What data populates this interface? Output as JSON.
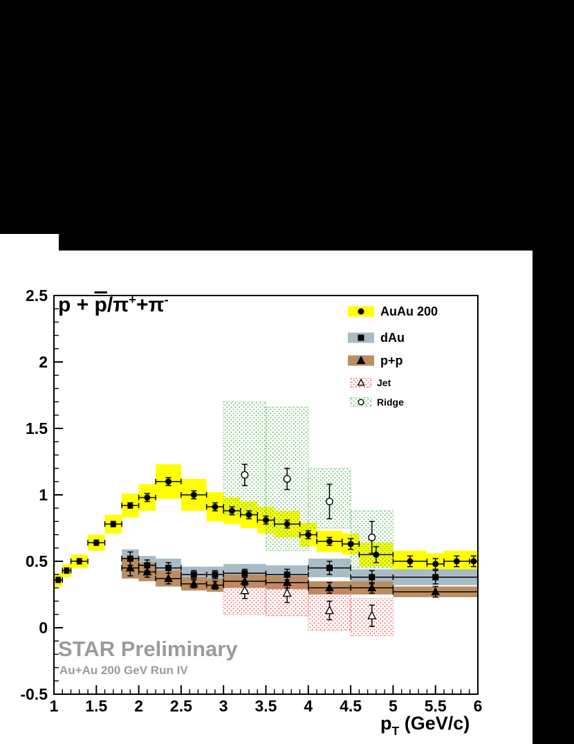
{
  "window": {
    "bg": "#000000",
    "canvas_bg": "#ffffff"
  },
  "title_parts": [
    {
      "t": "p + "
    },
    {
      "t": "p",
      "s": "overline"
    },
    {
      "t": "/π"
    },
    {
      "t": "+",
      "s": "sup"
    },
    {
      "t": "+π"
    },
    {
      "t": "-",
      "s": "sup"
    }
  ],
  "watermark": {
    "line1": "STAR Preliminary",
    "line2": "Au+Au 200 GeV Run IV",
    "color": "#9b9b9b"
  },
  "axis": {
    "xlabel_parts": [
      {
        "t": "p"
      },
      {
        "t": "T",
        "s": "sub"
      },
      {
        "t": " (GeV/c)"
      }
    ]
  },
  "chart_data": {
    "type": "scatter",
    "xlim": [
      1,
      6
    ],
    "ylim": [
      -0.5,
      2.5
    ],
    "grid": false,
    "legend_position": "top-right",
    "xticks": {
      "values": [
        1,
        1.5,
        2,
        2.5,
        3,
        3.5,
        4,
        4.5,
        5,
        5.5,
        6
      ],
      "labels": [
        "1",
        "1.5",
        "2",
        "2.5",
        "3",
        "3.5",
        "4",
        "4.5",
        "5",
        "5.5",
        "6"
      ]
    },
    "yticks": {
      "values": [
        -0.5,
        0,
        0.5,
        1,
        1.5,
        2,
        2.5
      ],
      "labels": [
        "-0.5",
        "0",
        "0.5",
        "1",
        "1.5",
        "2",
        "2.5"
      ]
    },
    "minor_tick_step": 0.1,
    "series": [
      {
        "name": "AuAu 200",
        "marker": "circle-filled",
        "marker_color": "#000000",
        "band_color": "#ffff00",
        "points": [
          {
            "x": 1.05,
            "y": 0.36,
            "xw": 0.05,
            "sys": 0.05,
            "stat": 0.02
          },
          {
            "x": 1.15,
            "y": 0.43,
            "xw": 0.05,
            "sys": 0.05,
            "stat": 0.02
          },
          {
            "x": 1.3,
            "y": 0.5,
            "xw": 0.1,
            "sys": 0.05,
            "stat": 0.02
          },
          {
            "x": 1.5,
            "y": 0.64,
            "xw": 0.1,
            "sys": 0.06,
            "stat": 0.02
          },
          {
            "x": 1.7,
            "y": 0.78,
            "xw": 0.1,
            "sys": 0.07,
            "stat": 0.02
          },
          {
            "x": 1.9,
            "y": 0.92,
            "xw": 0.1,
            "sys": 0.09,
            "stat": 0.02
          },
          {
            "x": 2.1,
            "y": 0.98,
            "xw": 0.1,
            "sys": 0.1,
            "stat": 0.03
          },
          {
            "x": 2.35,
            "y": 1.1,
            "xw": 0.15,
            "sys": 0.13,
            "stat": 0.03
          },
          {
            "x": 2.65,
            "y": 1.0,
            "xw": 0.15,
            "sys": 0.12,
            "stat": 0.03
          },
          {
            "x": 2.9,
            "y": 0.91,
            "xw": 0.1,
            "sys": 0.11,
            "stat": 0.03
          },
          {
            "x": 3.1,
            "y": 0.88,
            "xw": 0.1,
            "sys": 0.1,
            "stat": 0.03
          },
          {
            "x": 3.3,
            "y": 0.85,
            "xw": 0.1,
            "sys": 0.1,
            "stat": 0.03
          },
          {
            "x": 3.5,
            "y": 0.81,
            "xw": 0.1,
            "sys": 0.1,
            "stat": 0.03
          },
          {
            "x": 3.75,
            "y": 0.78,
            "xw": 0.15,
            "sys": 0.1,
            "stat": 0.03
          },
          {
            "x": 4.0,
            "y": 0.7,
            "xw": 0.1,
            "sys": 0.09,
            "stat": 0.03
          },
          {
            "x": 4.25,
            "y": 0.65,
            "xw": 0.15,
            "sys": 0.08,
            "stat": 0.03
          },
          {
            "x": 4.5,
            "y": 0.63,
            "xw": 0.1,
            "sys": 0.08,
            "stat": 0.04
          },
          {
            "x": 4.8,
            "y": 0.55,
            "xw": 0.2,
            "sys": 0.09,
            "stat": 0.06
          },
          {
            "x": 5.2,
            "y": 0.5,
            "xw": 0.2,
            "sys": 0.08,
            "stat": 0.04
          },
          {
            "x": 5.5,
            "y": 0.48,
            "xw": 0.1,
            "sys": 0.08,
            "stat": 0.04
          },
          {
            "x": 5.75,
            "y": 0.5,
            "xw": 0.15,
            "sys": 0.08,
            "stat": 0.04
          },
          {
            "x": 5.95,
            "y": 0.5,
            "xw": 0.05,
            "sys": 0.08,
            "stat": 0.04
          }
        ]
      },
      {
        "name": "dAu",
        "marker": "square-filled",
        "marker_color": "#000000",
        "band_color": "#a9bcc6",
        "points": [
          {
            "x": 1.9,
            "y": 0.52,
            "xw": 0.1,
            "sys": 0.07,
            "stat": 0.05
          },
          {
            "x": 2.1,
            "y": 0.47,
            "xw": 0.1,
            "sys": 0.07,
            "stat": 0.04
          },
          {
            "x": 2.35,
            "y": 0.45,
            "xw": 0.15,
            "sys": 0.07,
            "stat": 0.04
          },
          {
            "x": 2.65,
            "y": 0.4,
            "xw": 0.15,
            "sys": 0.06,
            "stat": 0.03
          },
          {
            "x": 2.9,
            "y": 0.4,
            "xw": 0.1,
            "sys": 0.06,
            "stat": 0.03
          },
          {
            "x": 3.25,
            "y": 0.41,
            "xw": 0.25,
            "sys": 0.07,
            "stat": 0.03
          },
          {
            "x": 3.75,
            "y": 0.4,
            "xw": 0.25,
            "sys": 0.07,
            "stat": 0.04
          },
          {
            "x": 4.25,
            "y": 0.45,
            "xw": 0.25,
            "sys": 0.07,
            "stat": 0.05
          },
          {
            "x": 4.75,
            "y": 0.38,
            "xw": 0.25,
            "sys": 0.06,
            "stat": 0.05
          },
          {
            "x": 5.5,
            "y": 0.38,
            "xw": 0.5,
            "sys": 0.06,
            "stat": 0.05
          }
        ]
      },
      {
        "name": "p+p",
        "marker": "triangle-filled",
        "marker_color": "#000000",
        "band_color": "#bc8d62",
        "points": [
          {
            "x": 1.9,
            "y": 0.45,
            "xw": 0.1,
            "sys": 0.08,
            "stat": 0.06
          },
          {
            "x": 2.1,
            "y": 0.42,
            "xw": 0.1,
            "sys": 0.07,
            "stat": 0.04
          },
          {
            "x": 2.35,
            "y": 0.37,
            "xw": 0.15,
            "sys": 0.06,
            "stat": 0.04
          },
          {
            "x": 2.65,
            "y": 0.33,
            "xw": 0.15,
            "sys": 0.05,
            "stat": 0.03
          },
          {
            "x": 2.9,
            "y": 0.32,
            "xw": 0.1,
            "sys": 0.05,
            "stat": 0.03
          },
          {
            "x": 3.25,
            "y": 0.35,
            "xw": 0.25,
            "sys": 0.05,
            "stat": 0.03
          },
          {
            "x": 3.75,
            "y": 0.34,
            "xw": 0.25,
            "sys": 0.05,
            "stat": 0.04
          },
          {
            "x": 4.25,
            "y": 0.3,
            "xw": 0.25,
            "sys": 0.05,
            "stat": 0.04
          },
          {
            "x": 4.75,
            "y": 0.3,
            "xw": 0.25,
            "sys": 0.05,
            "stat": 0.04
          },
          {
            "x": 5.5,
            "y": 0.27,
            "xw": 0.5,
            "sys": 0.04,
            "stat": 0.04
          }
        ]
      },
      {
        "name": "Jet",
        "marker": "triangle-open",
        "marker_color": "#000000",
        "pattern": "dots-red",
        "pattern_color": "#ee6666",
        "points": [
          {
            "x": 3.25,
            "y": 0.28,
            "stat": 0.06
          },
          {
            "x": 3.75,
            "y": 0.26,
            "stat": 0.07
          },
          {
            "x": 4.25,
            "y": 0.13,
            "stat": 0.07
          },
          {
            "x": 4.75,
            "y": 0.09,
            "stat": 0.08
          }
        ],
        "band_boxes": [
          {
            "x1": 3.0,
            "x2": 3.5,
            "y1": 0.1,
            "y2": 0.33
          },
          {
            "x1": 3.5,
            "x2": 4.0,
            "y1": 0.09,
            "y2": 0.33
          },
          {
            "x1": 4.0,
            "x2": 4.5,
            "y1": -0.02,
            "y2": 0.28
          },
          {
            "x1": 4.5,
            "x2": 5.0,
            "y1": -0.06,
            "y2": 0.22
          }
        ]
      },
      {
        "name": "Ridge",
        "marker": "circle-open",
        "marker_color": "#000000",
        "pattern": "dots-green",
        "pattern_color": "#66bb66",
        "points": [
          {
            "x": 3.25,
            "y": 1.15,
            "stat": 0.08
          },
          {
            "x": 3.75,
            "y": 1.12,
            "stat": 0.08
          },
          {
            "x": 4.25,
            "y": 0.95,
            "stat": 0.13
          },
          {
            "x": 4.75,
            "y": 0.68,
            "stat": 0.12
          }
        ],
        "band_boxes": [
          {
            "x1": 3.0,
            "x2": 3.5,
            "y1": 0.85,
            "y2": 1.7
          },
          {
            "x1": 3.5,
            "x2": 4.0,
            "y1": 0.58,
            "y2": 1.66
          },
          {
            "x1": 4.0,
            "x2": 4.5,
            "y1": 0.75,
            "y2": 1.2
          },
          {
            "x1": 4.5,
            "x2": 5.0,
            "y1": 0.45,
            "y2": 0.88
          }
        ]
      }
    ]
  },
  "legend": {
    "entries": [
      {
        "label": "AuAu 200",
        "swatch": "#ffff00",
        "marker": "circle-filled",
        "size": "large"
      },
      {
        "label": "dAu",
        "swatch": "#a9bcc6",
        "marker": "square-filled",
        "size": "large"
      },
      {
        "label": "p+p",
        "swatch": "#bc8d62",
        "marker": "triangle-filled",
        "size": "large"
      },
      {
        "label": "Jet",
        "swatch": "dots-red",
        "marker": "triangle-open",
        "size": "small"
      },
      {
        "label": "Ridge",
        "swatch": "dots-green",
        "marker": "circle-open",
        "size": "small"
      }
    ]
  }
}
